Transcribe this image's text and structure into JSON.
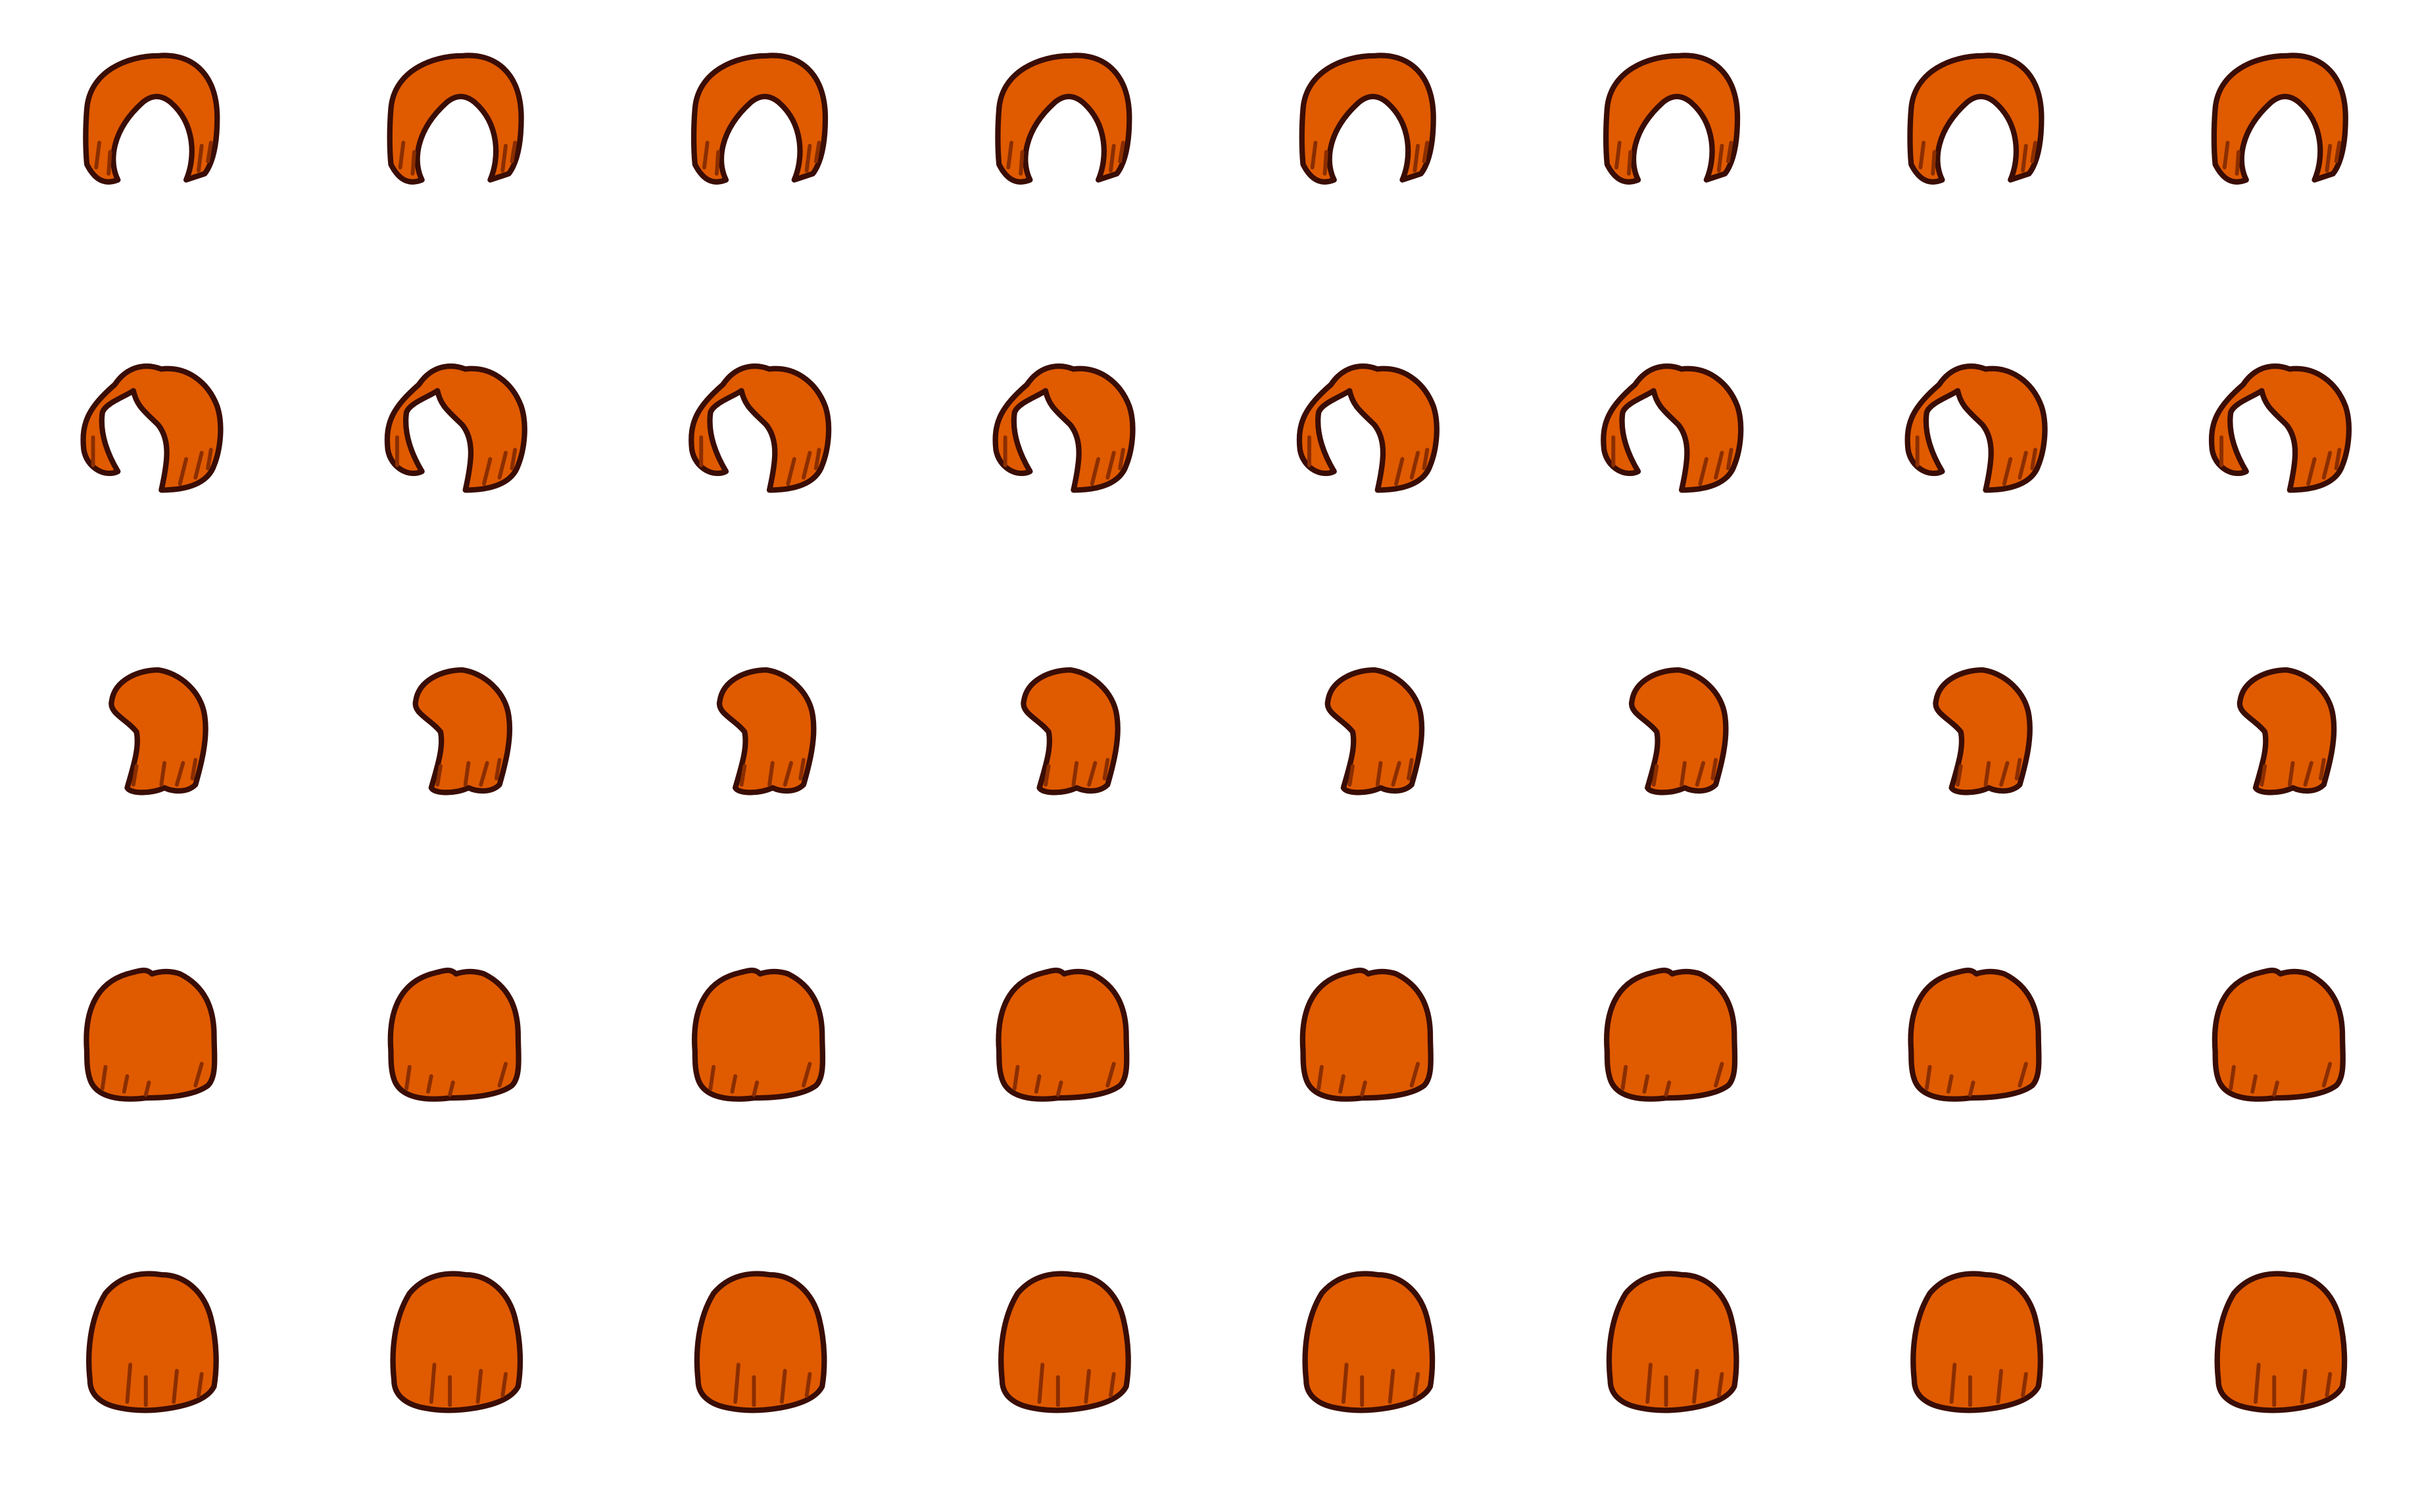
{
  "sprite_sheet": {
    "background": "#ffffff",
    "colors": {
      "hair_fill": "#e05a00",
      "hair_shadow": "#8a2e00",
      "outline": "#3a0d05"
    },
    "columns": 8,
    "rows": [
      {
        "style": "hair-style-1-icon",
        "frames": 8
      },
      {
        "style": "hair-style-2-icon",
        "frames": 8
      },
      {
        "style": "hair-style-3-icon",
        "frames": 8
      },
      {
        "style": "hair-style-4-icon",
        "frames": 8
      },
      {
        "style": "hair-style-5-icon",
        "frames": 8
      }
    ]
  }
}
